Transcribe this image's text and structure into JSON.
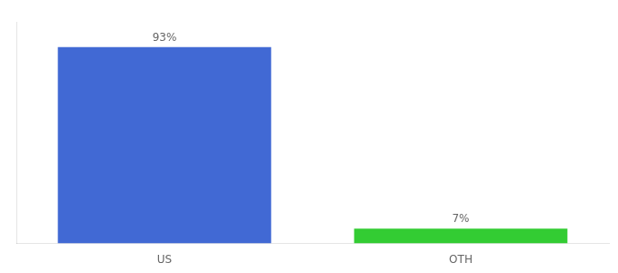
{
  "chart_data": {
    "type": "bar",
    "categories": [
      "US",
      "OTH"
    ],
    "values": [
      93,
      7
    ],
    "value_labels": [
      "93%",
      "7%"
    ],
    "colors": [
      "#4169d4",
      "#33cc33"
    ],
    "ylim": [
      0,
      105
    ],
    "grid": false,
    "data_labels": true,
    "tick_labels": "x"
  }
}
